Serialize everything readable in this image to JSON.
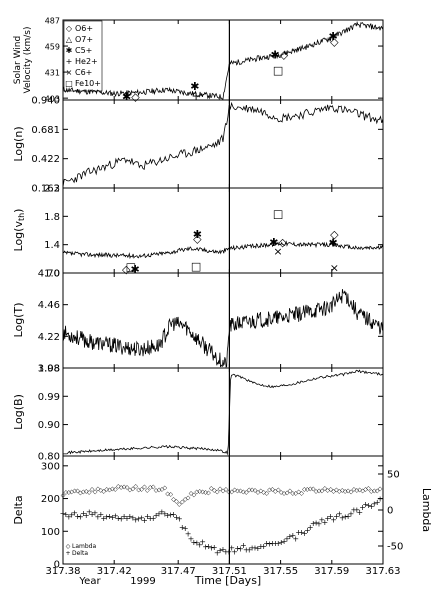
{
  "chart_data": [
    {
      "type": "line",
      "ylabel": "Solar Wind Velocity (km/s)",
      "yticks": [
        403,
        431,
        459,
        487
      ],
      "ylim": [
        401,
        487
      ],
      "legend": {
        "placement": "top-left",
        "entries": [
          {
            "symbol": "◇",
            "label": "O6+"
          },
          {
            "symbol": "△",
            "label": "O7+"
          },
          {
            "symbol": "✱",
            "label": "C5+"
          },
          {
            "symbol": "+",
            "label": "He2+"
          },
          {
            "symbol": "×",
            "label": "C6+"
          },
          {
            "symbol": "□",
            "label": "Fe10+"
          }
        ]
      },
      "series": [
        {
          "values": [
            [
              317.38,
              412
            ],
            [
              317.4,
              410
            ],
            [
              317.42,
              408
            ],
            [
              317.44,
              409
            ],
            [
              317.46,
              412
            ],
            [
              317.48,
              408
            ],
            [
              317.5,
              405
            ],
            [
              317.505,
              404
            ],
            [
              317.51,
              440
            ],
            [
              317.53,
              445
            ],
            [
              317.55,
              450
            ],
            [
              317.57,
              458
            ],
            [
              317.59,
              468
            ],
            [
              317.61,
              482
            ],
            [
              317.63,
              478
            ]
          ]
        }
      ],
      "markers": [
        {
          "x": 317.433,
          "y": 405,
          "symbols": "✱◇"
        },
        {
          "x": 317.483,
          "y": 416,
          "symbols": "✱"
        },
        {
          "x": 317.484,
          "y": 406,
          "symbols": "+"
        },
        {
          "x": 317.549,
          "y": 450,
          "symbols": "✱◇"
        },
        {
          "x": 317.548,
          "y": 433,
          "symbols": "□"
        },
        {
          "x": 317.591,
          "y": 470,
          "symbols": "✱"
        },
        {
          "x": 317.592,
          "y": 464,
          "symbols": "◇"
        }
      ]
    },
    {
      "type": "line",
      "ylabel": "Log(n)",
      "yticks": [
        0.163,
        0.422,
        0.681,
        0.94
      ],
      "ylim": [
        0.163,
        0.94
      ],
      "series": [
        {
          "values": [
            [
              317.38,
              0.2
            ],
            [
              317.4,
              0.3
            ],
            [
              317.42,
              0.38
            ],
            [
              317.43,
              0.42
            ],
            [
              317.44,
              0.35
            ],
            [
              317.46,
              0.42
            ],
            [
              317.48,
              0.48
            ],
            [
              317.5,
              0.55
            ],
            [
              317.505,
              0.6
            ],
            [
              317.51,
              0.88
            ],
            [
              317.53,
              0.86
            ],
            [
              317.55,
              0.78
            ],
            [
              317.57,
              0.82
            ],
            [
              317.59,
              0.88
            ],
            [
              317.61,
              0.82
            ],
            [
              317.63,
              0.75
            ]
          ]
        }
      ]
    },
    {
      "type": "line",
      "ylabel": "Log(vth)",
      "yticks": [
        1.0,
        1.4,
        1.8,
        2.2
      ],
      "ylim": [
        1.0,
        2.2
      ],
      "series": [
        {
          "values": [
            [
              317.38,
              1.28
            ],
            [
              317.4,
              1.26
            ],
            [
              317.42,
              1.25
            ],
            [
              317.44,
              1.24
            ],
            [
              317.46,
              1.28
            ],
            [
              317.48,
              1.35
            ],
            [
              317.5,
              1.3
            ],
            [
              317.505,
              1.3
            ],
            [
              317.51,
              1.35
            ],
            [
              317.53,
              1.38
            ],
            [
              317.55,
              1.42
            ],
            [
              317.57,
              1.4
            ],
            [
              317.59,
              1.4
            ],
            [
              317.61,
              1.35
            ],
            [
              317.63,
              1.36
            ]
          ]
        }
      ],
      "markers": [
        {
          "x": 317.433,
          "y": 1.09,
          "symbols": "□"
        },
        {
          "x": 317.433,
          "y": 1.06,
          "symbols": "◇✱"
        },
        {
          "x": 317.485,
          "y": 1.55,
          "symbols": "✱"
        },
        {
          "x": 317.485,
          "y": 1.49,
          "symbols": "◇"
        },
        {
          "x": 317.484,
          "y": 1.1,
          "symbols": "□"
        },
        {
          "x": 317.548,
          "y": 1.84,
          "symbols": "□"
        },
        {
          "x": 317.548,
          "y": 1.44,
          "symbols": "✱◇"
        },
        {
          "x": 317.548,
          "y": 1.31,
          "symbols": "×"
        },
        {
          "x": 317.592,
          "y": 1.55,
          "symbols": "◇"
        },
        {
          "x": 317.591,
          "y": 1.43,
          "symbols": "✱"
        },
        {
          "x": 317.592,
          "y": 1.08,
          "symbols": "×"
        }
      ]
    },
    {
      "type": "line",
      "ylabel": "Log(T)",
      "yticks": [
        3.98,
        4.22,
        4.46,
        4.7
      ],
      "ylim": [
        3.98,
        4.7
      ],
      "series": [
        {
          "values": [
            [
              317.38,
              4.25
            ],
            [
              317.4,
              4.18
            ],
            [
              317.42,
              4.15
            ],
            [
              317.44,
              4.12
            ],
            [
              317.455,
              4.15
            ],
            [
              317.465,
              4.32
            ],
            [
              317.475,
              4.3
            ],
            [
              317.49,
              4.15
            ],
            [
              317.5,
              4.06
            ],
            [
              317.508,
              4.0
            ],
            [
              317.51,
              4.3
            ],
            [
              317.53,
              4.34
            ],
            [
              317.55,
              4.36
            ],
            [
              317.57,
              4.4
            ],
            [
              317.59,
              4.45
            ],
            [
              317.6,
              4.55
            ],
            [
              317.61,
              4.4
            ],
            [
              317.63,
              4.28
            ]
          ]
        }
      ]
    },
    {
      "type": "line",
      "ylabel": "Log(B)",
      "yticks": [
        0.8,
        0.9,
        0.99,
        1.08
      ],
      "ylim": [
        0.8,
        1.08
      ],
      "series": [
        {
          "values": [
            [
              317.38,
              0.81
            ],
            [
              317.4,
              0.815
            ],
            [
              317.42,
              0.82
            ],
            [
              317.44,
              0.825
            ],
            [
              317.46,
              0.83
            ],
            [
              317.48,
              0.825
            ],
            [
              317.5,
              0.82
            ],
            [
              317.509,
              0.81
            ],
            [
              317.511,
              1.06
            ],
            [
              317.52,
              1.05
            ],
            [
              317.53,
              1.03
            ],
            [
              317.545,
              1.02
            ],
            [
              317.56,
              1.03
            ],
            [
              317.58,
              1.05
            ],
            [
              317.6,
              1.06
            ],
            [
              317.61,
              1.07
            ],
            [
              317.63,
              1.06
            ]
          ]
        }
      ]
    },
    {
      "type": "scatter",
      "ylabel": "Delta",
      "yticks": [
        0,
        100,
        200,
        300
      ],
      "ylim": [
        0,
        330
      ],
      "ylabel_right": "Lambda",
      "yticks_right": [
        50,
        0,
        -50
      ],
      "legend": {
        "placement": "bottom-left",
        "entries": [
          {
            "symbol": "◇",
            "label": "Lambda"
          },
          {
            "symbol": "+",
            "label": "Delta"
          }
        ]
      },
      "series": [
        {
          "name": "Lambda",
          "values": [
            [
              317.38,
              25
            ],
            [
              317.4,
              28
            ],
            [
              317.42,
              32
            ],
            [
              317.44,
              32
            ],
            [
              317.46,
              30
            ],
            [
              317.47,
              10
            ],
            [
              317.48,
              25
            ],
            [
              317.5,
              30
            ],
            [
              317.52,
              27
            ],
            [
              317.54,
              28
            ],
            [
              317.56,
              27
            ],
            [
              317.58,
              30
            ],
            [
              317.6,
              29
            ],
            [
              317.62,
              30
            ],
            [
              317.63,
              28
            ]
          ]
        },
        {
          "name": "Delta",
          "values": [
            [
              317.38,
              150
            ],
            [
              317.4,
              155
            ],
            [
              317.42,
              145
            ],
            [
              317.44,
              140
            ],
            [
              317.46,
              155
            ],
            [
              317.47,
              140
            ],
            [
              317.48,
              80
            ],
            [
              317.5,
              40
            ],
            [
              317.52,
              50
            ],
            [
              317.54,
              60
            ],
            [
              317.56,
              80
            ],
            [
              317.58,
              130
            ],
            [
              317.6,
              150
            ],
            [
              317.62,
              180
            ],
            [
              317.63,
              200
            ]
          ]
        }
      ]
    }
  ],
  "x_axis": {
    "ticks": [
      "317.38",
      "317.42",
      "317.47",
      "317.51",
      "317.55",
      "317.59",
      "317.63"
    ],
    "tick_values": [
      317.38,
      317.42,
      317.47,
      317.51,
      317.55,
      317.59,
      317.63
    ],
    "xlim": [
      317.38,
      317.63
    ],
    "marker_line": 317.51,
    "label": "Time [Days]",
    "year_label": "Year",
    "year_value": "1999"
  }
}
